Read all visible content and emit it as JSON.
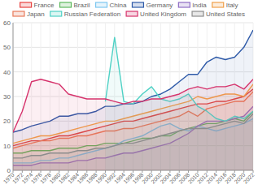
{
  "chart_data": {
    "type": "area",
    "grid": true,
    "legend": "top",
    "x": [
      1970,
      1972,
      1974,
      1976,
      1978,
      1980,
      1982,
      1984,
      1986,
      1988,
      1990,
      1992,
      1994,
      1996,
      1998,
      2000,
      2002,
      2004,
      2006,
      2008,
      2010,
      2012,
      2014,
      2016,
      2018,
      2020,
      2022
    ],
    "xlim": [
      1970,
      2022
    ],
    "xticks": [
      1970,
      1972,
      1974,
      1976,
      1978,
      1980,
      1982,
      1984,
      1986,
      1988,
      1990,
      1992,
      1994,
      1996,
      1998,
      2000,
      2002,
      2004,
      2006,
      2008,
      2010,
      2012,
      2014,
      2016,
      2018,
      2020,
      2022
    ],
    "ylim": [
      0,
      60
    ],
    "yticks": [
      0,
      10,
      20,
      30,
      40,
      50,
      60
    ],
    "series": [
      {
        "name": "France",
        "color": "#e8413f",
        "values": [
          10,
          11,
          12,
          12,
          13,
          14,
          14,
          15,
          16,
          17,
          18,
          19,
          20,
          20,
          21,
          22,
          23,
          24,
          25,
          26,
          27,
          27,
          28,
          28,
          29,
          30,
          33
        ]
      },
      {
        "name": "Brazil",
        "color": "#5cb85c",
        "values": [
          7,
          7,
          8,
          8,
          8,
          9,
          9,
          9,
          10,
          10,
          11,
          11,
          11,
          12,
          13,
          13,
          14,
          14,
          16,
          17,
          18,
          19,
          19,
          20,
          21,
          20,
          24
        ]
      },
      {
        "name": "China",
        "color": "#7cc7f0",
        "values": [
          3,
          3,
          3,
          4,
          4,
          5,
          5,
          6,
          7,
          8,
          9,
          10,
          12,
          13,
          14,
          16,
          18,
          19,
          17,
          16,
          18,
          17,
          16,
          17,
          18,
          19,
          21
        ]
      },
      {
        "name": "Germany",
        "color": "#2e5aa8",
        "values": [
          15.5,
          16.5,
          18,
          19,
          20,
          22,
          22,
          23,
          23,
          24,
          26,
          26,
          27,
          27,
          28,
          30,
          31,
          33,
          36,
          39,
          39,
          44,
          46,
          45,
          46,
          50,
          57
        ]
      },
      {
        "name": "India",
        "color": "#8e6cc4",
        "values": [
          2,
          2,
          2,
          3,
          3,
          3,
          3,
          4,
          4,
          5,
          5,
          6,
          7,
          7,
          8,
          9,
          10,
          11,
          13,
          15,
          18,
          20,
          20,
          20,
          21,
          22,
          26
        ]
      },
      {
        "name": "Italy",
        "color": "#f0a04b",
        "values": [
          11,
          12,
          13,
          14,
          14,
          15,
          16,
          17,
          18,
          19,
          20,
          20,
          21,
          22,
          23,
          24,
          25,
          26,
          27,
          28,
          30,
          29,
          30,
          31,
          31,
          30,
          35
        ]
      },
      {
        "name": "Japan",
        "color": "#e87a5a",
        "values": [
          9,
          10,
          11,
          12,
          12,
          13,
          13,
          14,
          14,
          15,
          16,
          16,
          17,
          17,
          18,
          19,
          20,
          21,
          22,
          24,
          22,
          25,
          26,
          27,
          28,
          28,
          32
        ]
      },
      {
        "name": "Russian Federation",
        "color": "#4fd1c5",
        "values": [
          null,
          null,
          null,
          null,
          null,
          null,
          null,
          null,
          null,
          null,
          28,
          54,
          28,
          27,
          31,
          34,
          29,
          28,
          29,
          31,
          26,
          24,
          21,
          20,
          22,
          21,
          24
        ]
      },
      {
        "name": "United Kingdom",
        "color": "#d6336c",
        "values": [
          15.5,
          24,
          36,
          37,
          36,
          35,
          31,
          30,
          29,
          29,
          29,
          28,
          27,
          28,
          28,
          29,
          29,
          30,
          31,
          33,
          34,
          33,
          34,
          34,
          35,
          33,
          37
        ]
      },
      {
        "name": "United States",
        "color": "#8c8c8c",
        "values": [
          5,
          5,
          6,
          6,
          7,
          7,
          7,
          8,
          8,
          9,
          9,
          10,
          11,
          11,
          12,
          13,
          14,
          15,
          16,
          17,
          17,
          17,
          18,
          19,
          20,
          19,
          23
        ]
      }
    ]
  }
}
